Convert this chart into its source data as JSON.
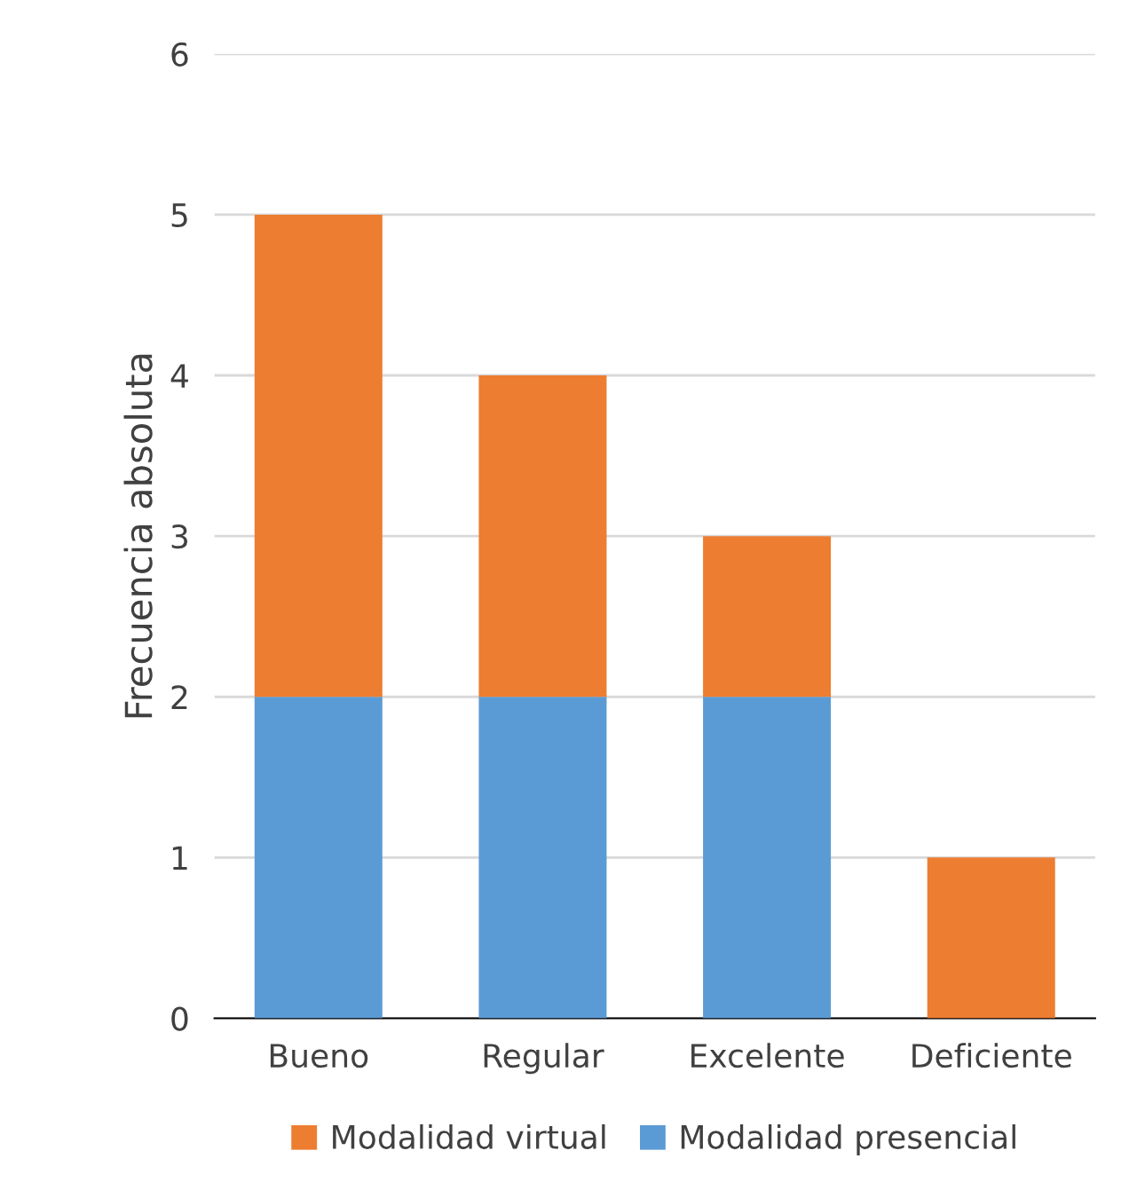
{
  "chart_data": {
    "type": "bar",
    "ylabel": "Frecuencia absoluta",
    "categories": [
      "Bueno",
      "Regular",
      "Excelente",
      "Deficiente"
    ],
    "stacked": true,
    "series": [
      {
        "name": "Modalidad presencial",
        "color": "#5b9bd5",
        "values": [
          2,
          2,
          2,
          0
        ]
      },
      {
        "name": "Modalidad virtual",
        "color": "#ed7d31",
        "values": [
          3,
          2,
          1,
          1
        ]
      }
    ],
    "ylim": [
      0,
      6
    ],
    "yticks": [
      0,
      1,
      2,
      3,
      4,
      5,
      6
    ],
    "grid": "y",
    "legend": "bottom"
  }
}
